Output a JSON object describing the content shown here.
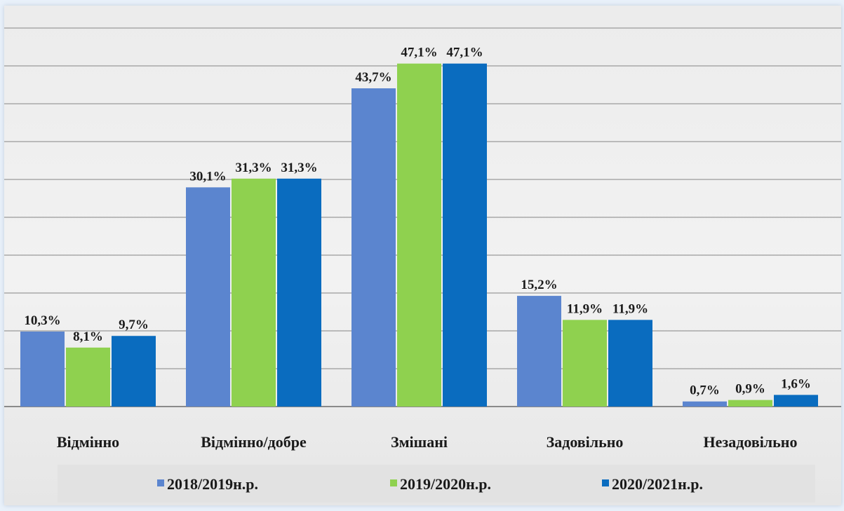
{
  "chart_data": {
    "type": "bar",
    "categories": [
      "Відмінно",
      "Відмінно/добре",
      "Змішані",
      "Задовільно",
      "Незадовільно"
    ],
    "series": [
      {
        "name": "2018/2019н.р.",
        "values": [
          10.3,
          30.1,
          43.7,
          15.2,
          0.7
        ],
        "labels": [
          "10,3%",
          "30,1%",
          "43,7%",
          "15,2%",
          "0,7%"
        ],
        "color": "#5b85cf"
      },
      {
        "name": "2019/2020н.р.",
        "values": [
          8.1,
          31.3,
          47.1,
          11.9,
          0.9
        ],
        "labels": [
          "8,1%",
          "31,3%",
          "47,1%",
          "11,9%",
          "0,9%"
        ],
        "color": "#8fd14f"
      },
      {
        "name": "2020/2021н.р.",
        "values": [
          9.7,
          31.3,
          47.1,
          11.9,
          1.6
        ],
        "labels": [
          "9,7%",
          "31,3%",
          "47,1%",
          "11,9%",
          "1,6%"
        ],
        "color": "#0a6cbf"
      }
    ],
    "ylim": [
      0,
      54
    ],
    "grid": true,
    "legend": "bottom",
    "title": "",
    "xlabel": "",
    "ylabel": ""
  }
}
